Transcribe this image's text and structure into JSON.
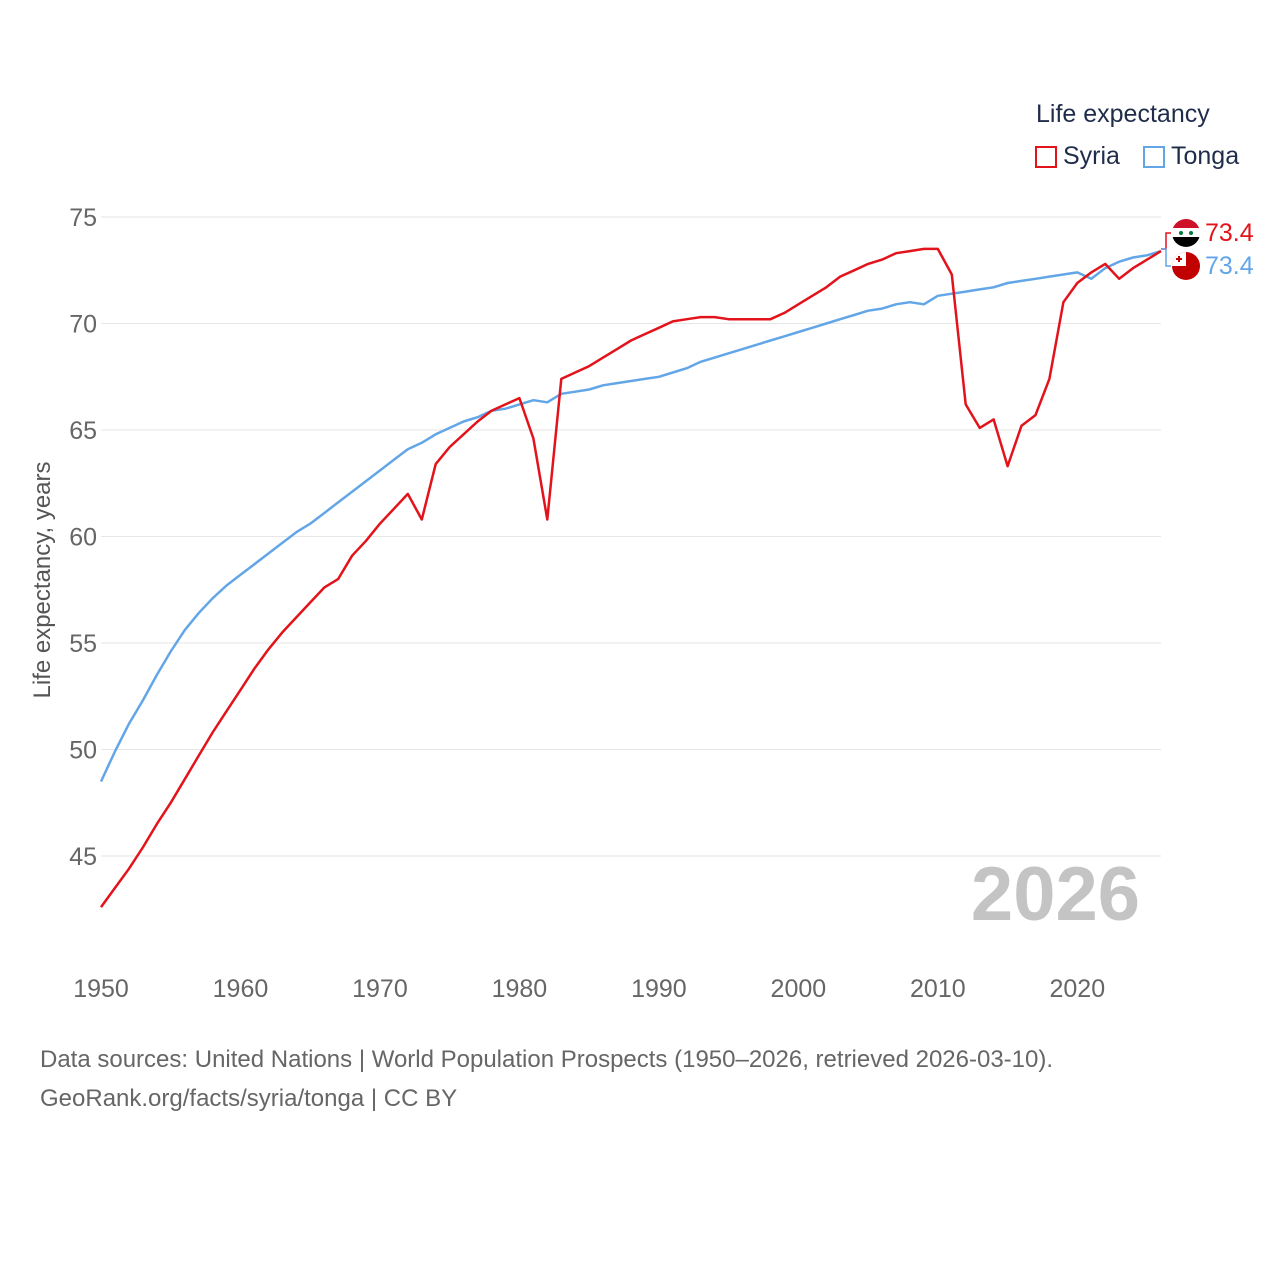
{
  "legend": {
    "title": "Life expectancy",
    "items": [
      {
        "label": "Syria",
        "color": "#e3131b"
      },
      {
        "label": "Tonga",
        "color": "#63a6e8"
      }
    ]
  },
  "year_watermark": "2026",
  "source": {
    "line1": "Data sources: United Nations | World Population Prospects (1950–2026, retrieved 2026-03-10).",
    "line2": "GeoRank.org/facts/syria/tonga | CC BY"
  },
  "end_labels": {
    "syria": "73.4",
    "tonga": "73.4"
  },
  "chart_data": {
    "type": "line",
    "title": "",
    "xlabel": "",
    "ylabel": "Life expectancy, years",
    "xlim": [
      1950,
      2026
    ],
    "ylim": [
      41,
      76
    ],
    "x_ticks": [
      1950,
      1960,
      1970,
      1980,
      1990,
      2000,
      2010,
      2020
    ],
    "y_ticks": [
      45,
      50,
      55,
      60,
      65,
      70,
      75
    ],
    "grid": true,
    "x": [
      1950,
      1951,
      1952,
      1953,
      1954,
      1955,
      1956,
      1957,
      1958,
      1959,
      1960,
      1961,
      1962,
      1963,
      1964,
      1965,
      1966,
      1967,
      1968,
      1969,
      1970,
      1971,
      1972,
      1973,
      1974,
      1975,
      1976,
      1977,
      1978,
      1979,
      1980,
      1981,
      1982,
      1983,
      1984,
      1985,
      1986,
      1987,
      1988,
      1989,
      1990,
      1991,
      1992,
      1993,
      1994,
      1995,
      1996,
      1997,
      1998,
      1999,
      2000,
      2001,
      2002,
      2003,
      2004,
      2005,
      2006,
      2007,
      2008,
      2009,
      2010,
      2011,
      2012,
      2013,
      2014,
      2015,
      2016,
      2017,
      2018,
      2019,
      2020,
      2021,
      2022,
      2023,
      2024,
      2025,
      2026
    ],
    "series": [
      {
        "name": "Syria",
        "color": "#e3131b",
        "values": [
          42.6,
          43.5,
          44.4,
          45.4,
          46.5,
          47.5,
          48.6,
          49.7,
          50.8,
          51.8,
          52.8,
          53.8,
          54.7,
          55.5,
          56.2,
          56.9,
          57.6,
          58.0,
          59.1,
          59.8,
          60.6,
          61.3,
          62.0,
          60.8,
          63.4,
          64.2,
          64.8,
          65.4,
          65.9,
          66.2,
          66.5,
          64.6,
          60.8,
          67.4,
          67.7,
          68.0,
          68.4,
          68.8,
          69.2,
          69.5,
          69.8,
          70.1,
          70.2,
          70.3,
          70.3,
          70.2,
          70.2,
          70.2,
          70.2,
          70.5,
          70.9,
          71.3,
          71.7,
          72.2,
          72.5,
          72.8,
          73.0,
          73.3,
          73.4,
          73.5,
          73.5,
          72.3,
          66.2,
          65.1,
          65.5,
          63.3,
          65.2,
          65.7,
          67.4,
          71.0,
          71.9,
          72.4,
          72.8,
          72.1,
          72.6,
          73.0,
          73.4
        ]
      },
      {
        "name": "Tonga",
        "color": "#63a6e8",
        "values": [
          48.5,
          49.9,
          51.2,
          52.3,
          53.5,
          54.6,
          55.6,
          56.4,
          57.1,
          57.7,
          58.2,
          58.7,
          59.2,
          59.7,
          60.2,
          60.6,
          61.1,
          61.6,
          62.1,
          62.6,
          63.1,
          63.6,
          64.1,
          64.4,
          64.8,
          65.1,
          65.4,
          65.6,
          65.9,
          66.0,
          66.2,
          66.4,
          66.3,
          66.7,
          66.8,
          66.9,
          67.1,
          67.2,
          67.3,
          67.4,
          67.5,
          67.7,
          67.9,
          68.2,
          68.4,
          68.6,
          68.8,
          69.0,
          69.2,
          69.4,
          69.6,
          69.8,
          70.0,
          70.2,
          70.4,
          70.6,
          70.7,
          70.9,
          71.0,
          70.9,
          71.3,
          71.4,
          71.5,
          71.6,
          71.7,
          71.9,
          72.0,
          72.1,
          72.2,
          72.3,
          72.4,
          72.1,
          72.6,
          72.9,
          73.1,
          73.2,
          73.4
        ]
      }
    ]
  }
}
